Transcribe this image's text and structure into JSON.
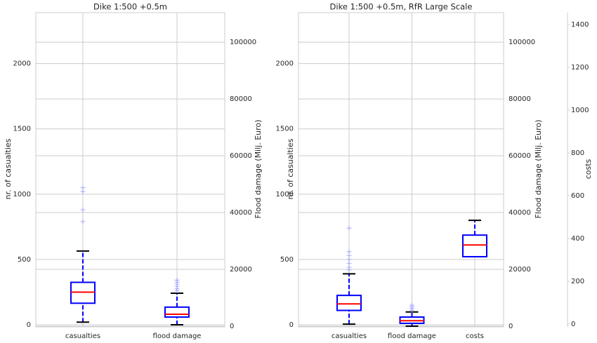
{
  "chart_data": [
    {
      "type": "box",
      "title": "Dike 1:500 +0.5m",
      "ylabel": "nr. of casualties",
      "y2label": "Flood damage (Milj. Euro)",
      "categories": [
        "casualties",
        "flood damage"
      ],
      "boxes": [
        {
          "whislo": 20,
          "q1": 165,
          "med": 250,
          "q3": 325,
          "whishi": 565,
          "fliers": [
            790,
            880,
            1020,
            1050
          ],
          "axis": "y"
        },
        {
          "whislo": 500,
          "q1": 3200,
          "med": 4200,
          "q3": 6700,
          "whishi": 11600,
          "fliers": [
            12500,
            13200,
            14000,
            14800,
            15500,
            16200
          ],
          "axis": "y2"
        }
      ],
      "ylim": [
        -16,
        2390
      ],
      "yticks": [
        0,
        500,
        1000,
        1500,
        2000
      ],
      "y2lim": [
        -250,
        110400
      ],
      "y2ticks": [
        0,
        20000,
        40000,
        60000,
        80000,
        100000
      ],
      "grid": true,
      "box_color": "#0000ff",
      "median_color": "#ff0000",
      "cap_color": "#000000",
      "flier_color": "#9a9aff"
    },
    {
      "type": "box",
      "title": "Dike 1:500 +0.5m, RfR Large Scale",
      "ylabel": "nr. of casualties",
      "y2label": "Flood damage (Milj. Euro)",
      "y3label": "costs",
      "categories": [
        "casualties",
        "flood damage",
        "costs"
      ],
      "boxes": [
        {
          "whislo": 5,
          "q1": 110,
          "med": 160,
          "q3": 225,
          "whishi": 390,
          "fliers": [
            420,
            440,
            470,
            500,
            530,
            560,
            740
          ],
          "axis": "y"
        },
        {
          "whislo": 0,
          "q1": 1000,
          "med": 1900,
          "q3": 3200,
          "whishi": 5000,
          "fliers": [
            5600,
            6200,
            6800,
            7400
          ],
          "axis": "y2"
        },
        {
          "whislo": 315,
          "q1": 315,
          "med": 370,
          "q3": 416,
          "whishi": 485,
          "fliers": [],
          "axis": "y3"
        }
      ],
      "ylim": [
        -16,
        2390
      ],
      "yticks": [
        0,
        500,
        1000,
        1500,
        2000
      ],
      "y2lim": [
        -250,
        110400
      ],
      "y2ticks": [
        0,
        20000,
        40000,
        60000,
        80000,
        100000
      ],
      "y3lim": [
        -13,
        1456
      ],
      "y3ticks": [
        0,
        200,
        400,
        600,
        800,
        1000,
        1200,
        1400
      ],
      "grid": true,
      "box_color": "#0000ff",
      "median_color": "#ff0000",
      "cap_color": "#000000",
      "flier_color": "#9a9aff"
    }
  ]
}
